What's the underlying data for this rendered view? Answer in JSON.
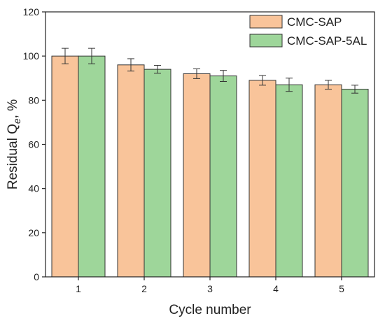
{
  "chart_data": {
    "type": "bar",
    "categories": [
      "1",
      "2",
      "3",
      "4",
      "5"
    ],
    "series": [
      {
        "name": "CMC-SAP",
        "values": [
          100,
          96,
          92,
          89,
          87
        ],
        "errors": [
          3.5,
          2.8,
          2.2,
          2.2,
          2.0
        ],
        "color": "#f9c49a"
      },
      {
        "name": "CMC-SAP-5AL",
        "values": [
          100,
          94,
          91,
          87,
          85
        ],
        "errors": [
          3.5,
          1.8,
          2.5,
          3.0,
          1.8
        ],
        "color": "#9ed69a"
      }
    ],
    "ylim": [
      0,
      120
    ],
    "yticks": [
      0,
      20,
      40,
      60,
      80,
      100,
      120
    ],
    "xlabel": "Cycle number",
    "ylabel_prefix": "Residual Q",
    "ylabel_sub": "e",
    "ylabel_suffix": ", %",
    "legend_position": "top-right",
    "grid": false
  }
}
